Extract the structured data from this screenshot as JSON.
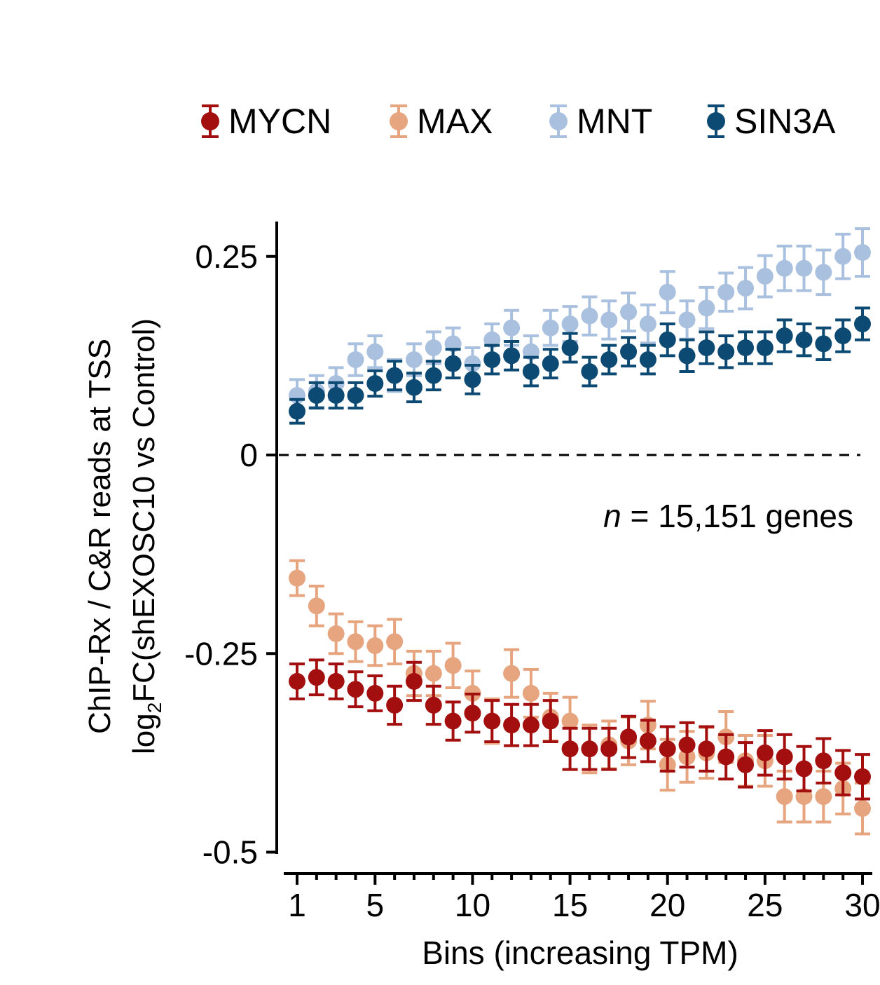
{
  "chart_data": {
    "type": "scatter",
    "title": "",
    "xlabel": "Bins (increasing TPM)",
    "ylabel_line1": "ChIP-Rx / C&R reads at TSS",
    "ylabel_line2_prefix": "log",
    "ylabel_line2_sub": "2",
    "ylabel_line2_suffix": "FC(shEXOSC10 vs Control)",
    "annotation_italic": "n",
    "annotation_rest": " = 15,151 genes",
    "xlim": [
      1,
      30
    ],
    "ylim": [
      -0.5,
      0.29
    ],
    "x_ticks": [
      1,
      5,
      10,
      15,
      20,
      25,
      30
    ],
    "x_tick_labels": [
      "1",
      "5",
      "10",
      "15",
      "20",
      "25",
      "30"
    ],
    "y_ticks": [
      0.25,
      0,
      -0.25,
      -0.5
    ],
    "y_tick_labels": [
      "0.25",
      "0",
      "-0.25",
      "-0.5"
    ],
    "reference_line": 0,
    "legend_position": "top",
    "x": [
      1,
      2,
      3,
      4,
      5,
      6,
      7,
      8,
      9,
      10,
      11,
      12,
      13,
      14,
      15,
      16,
      17,
      18,
      19,
      20,
      21,
      22,
      23,
      24,
      25,
      26,
      27,
      28,
      29,
      30
    ],
    "series": [
      {
        "name": "MNT",
        "color": "#a9c0df",
        "values": [
          0.075,
          0.08,
          0.09,
          0.12,
          0.13,
          0.1,
          0.12,
          0.135,
          0.14,
          0.115,
          0.145,
          0.16,
          0.13,
          0.16,
          0.165,
          0.175,
          0.17,
          0.18,
          0.165,
          0.205,
          0.17,
          0.185,
          0.205,
          0.21,
          0.225,
          0.235,
          0.235,
          0.23,
          0.25,
          0.255
        ],
        "errors": [
          0.02,
          0.02,
          0.02,
          0.02,
          0.02,
          0.02,
          0.02,
          0.02,
          0.02,
          0.02,
          0.02,
          0.022,
          0.02,
          0.022,
          0.022,
          0.024,
          0.024,
          0.024,
          0.024,
          0.026,
          0.024,
          0.026,
          0.024,
          0.026,
          0.026,
          0.028,
          0.028,
          0.028,
          0.028,
          0.03
        ]
      },
      {
        "name": "SIN3A",
        "color": "#0d4a73",
        "values": [
          0.055,
          0.075,
          0.075,
          0.075,
          0.09,
          0.1,
          0.085,
          0.1,
          0.115,
          0.095,
          0.12,
          0.125,
          0.105,
          0.115,
          0.135,
          0.105,
          0.12,
          0.13,
          0.12,
          0.145,
          0.125,
          0.135,
          0.13,
          0.135,
          0.135,
          0.15,
          0.145,
          0.14,
          0.15,
          0.165
        ],
        "errors": [
          0.015,
          0.016,
          0.016,
          0.016,
          0.016,
          0.018,
          0.018,
          0.018,
          0.018,
          0.018,
          0.018,
          0.018,
          0.018,
          0.018,
          0.018,
          0.018,
          0.018,
          0.018,
          0.018,
          0.02,
          0.02,
          0.02,
          0.02,
          0.02,
          0.02,
          0.02,
          0.02,
          0.02,
          0.02,
          0.02
        ]
      },
      {
        "name": "MAX",
        "color": "#e6a47f",
        "values": [
          -0.155,
          -0.19,
          -0.225,
          -0.235,
          -0.24,
          -0.235,
          -0.275,
          -0.275,
          -0.265,
          -0.3,
          -0.335,
          -0.275,
          -0.3,
          -0.33,
          -0.335,
          -0.37,
          -0.365,
          -0.36,
          -0.34,
          -0.39,
          -0.38,
          -0.375,
          -0.355,
          -0.385,
          -0.385,
          -0.43,
          -0.43,
          -0.43,
          -0.42,
          -0.445
        ],
        "errors": [
          0.022,
          0.025,
          0.025,
          0.025,
          0.025,
          0.028,
          0.028,
          0.028,
          0.028,
          0.028,
          0.028,
          0.03,
          0.03,
          0.03,
          0.03,
          0.03,
          0.03,
          0.03,
          0.03,
          0.032,
          0.032,
          0.032,
          0.032,
          0.032,
          0.032,
          0.032,
          0.032,
          0.032,
          0.032,
          0.032
        ]
      },
      {
        "name": "MYCN",
        "color": "#a30e0e",
        "values": [
          -0.285,
          -0.28,
          -0.285,
          -0.295,
          -0.3,
          -0.315,
          -0.285,
          -0.315,
          -0.335,
          -0.325,
          -0.335,
          -0.34,
          -0.34,
          -0.335,
          -0.37,
          -0.37,
          -0.37,
          -0.355,
          -0.36,
          -0.37,
          -0.365,
          -0.37,
          -0.38,
          -0.39,
          -0.375,
          -0.38,
          -0.395,
          -0.385,
          -0.4,
          -0.405
        ],
        "errors": [
          0.022,
          0.022,
          0.022,
          0.022,
          0.022,
          0.024,
          0.024,
          0.024,
          0.024,
          0.024,
          0.026,
          0.026,
          0.026,
          0.026,
          0.026,
          0.026,
          0.026,
          0.026,
          0.026,
          0.028,
          0.028,
          0.028,
          0.028,
          0.028,
          0.028,
          0.028,
          0.028,
          0.028,
          0.028,
          0.028
        ]
      }
    ],
    "legend_order": [
      "MYCN",
      "MAX",
      "MNT",
      "SIN3A"
    ]
  }
}
